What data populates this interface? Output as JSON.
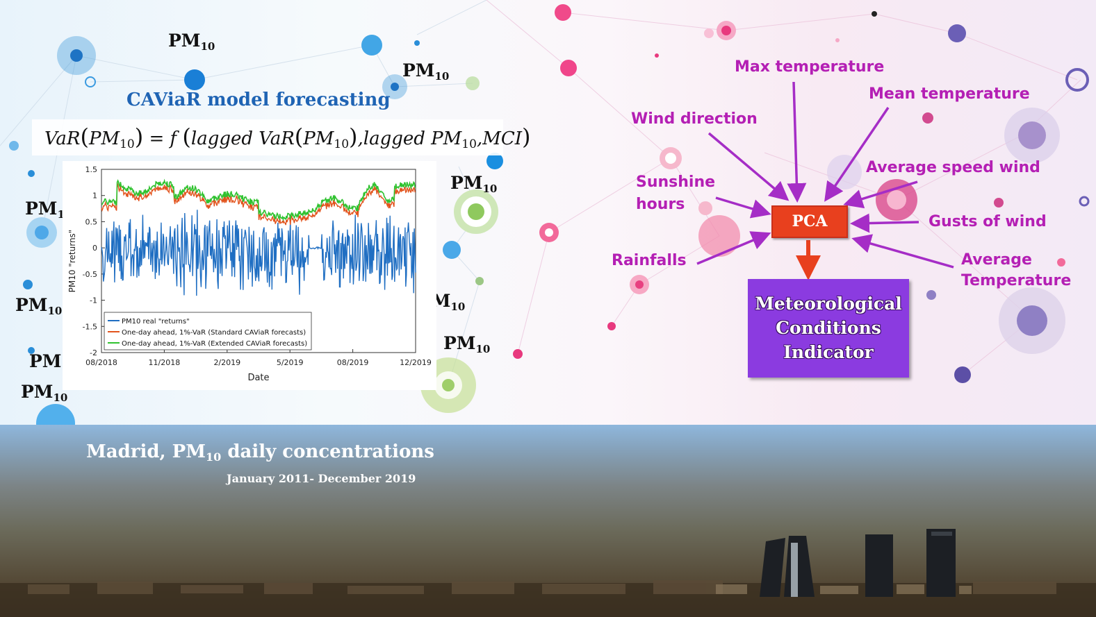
{
  "pm_label": {
    "main": "PM",
    "sub": "10"
  },
  "caviar_title": "CAViaR model forecasting",
  "formula": {
    "lhs": "VaR",
    "pm": "PM",
    "sub": "10",
    "eq": "= f",
    "lagged_var": "lagged VaR",
    "lagged_pm": "lagged PM",
    "mci": "MCI"
  },
  "chart_data": {
    "type": "line",
    "xlabel": "Date",
    "ylabel": "PM10 \"returns\"",
    "ylim": [
      -2,
      1.5
    ],
    "yticks": [
      "1.5",
      "1",
      "0.5",
      "0",
      "-0.5",
      "-1",
      "-1.5",
      "-2"
    ],
    "xticks": [
      "08/2018",
      "11/2018",
      "2/2019",
      "5/2019",
      "08/2019",
      "12/2019"
    ],
    "x_range": [
      "2018-08",
      "2019-12"
    ],
    "legend_position": "bottom-left",
    "series": [
      {
        "name": "PM10 real \"returns\"",
        "color": "#1f6ec2"
      },
      {
        "name": "One-day ahead, 1%-VaR (Standard CAViaR forecasts)",
        "color": "#e2531c"
      },
      {
        "name": "One-day ahead, 1%-VaR (Extended CAViaR forecasts)",
        "color": "#2fc22f"
      }
    ]
  },
  "variables": {
    "max_temperature": "Max temperature",
    "mean_temperature": "Mean temperature",
    "wind_direction": "Wind direction",
    "sunshine_1": "Sunshine",
    "sunshine_2": "hours",
    "average_speed_wind": "Average speed wind",
    "gusts_of_wind": "Gusts of wind",
    "rainfalls": "Rainfalls",
    "average_temperature_1": "Average",
    "average_temperature_2": "Temperature"
  },
  "pca": "PCA",
  "mci_box": {
    "line1": "Meteorological",
    "line2": "Conditions",
    "line3": "Indicator"
  },
  "photo": {
    "title_prefix": "Madrid, PM",
    "title_sub": "10",
    "title_suffix": " daily concentrations",
    "subtitle": "January 2011- December 2019"
  },
  "colors": {
    "arrow": "#a52dc6",
    "pca": "#e8401e",
    "mci": "#8b3be0",
    "title_blue": "#1f64b4",
    "variable_text": "#b41fb4"
  }
}
